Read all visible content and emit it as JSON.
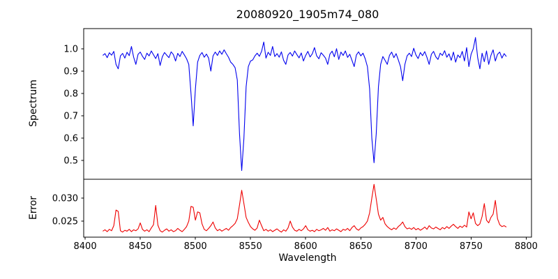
{
  "figure": {
    "background": "#ffffff",
    "text_color": "#000000"
  },
  "chart_data": {
    "type": "line",
    "title": "20080920_1905m74_080",
    "xlabel": "Wavelength",
    "grid": false,
    "legend": "none",
    "xlim": [
      8398.7,
      8804.8
    ],
    "x_ticks": [
      8400,
      8450,
      8500,
      8550,
      8600,
      8650,
      8700,
      8750,
      8800
    ],
    "x_tick_labels": [
      "8400",
      "8450",
      "8500",
      "8550",
      "8600",
      "8650",
      "8700",
      "8750",
      "8800"
    ],
    "x_start": 8416,
    "x_step": 2,
    "panels": [
      {
        "name": "spectrum",
        "ylabel": "Spectrum",
        "color": "#0000ee",
        "ylim": [
          0.416,
          1.09
        ],
        "y_ticks": [
          1.0,
          0.9,
          0.8,
          0.7,
          0.6,
          0.5
        ],
        "y_tick_labels": [
          "1.0",
          "0.9",
          "0.8",
          "0.7",
          "0.6",
          "0.5"
        ],
        "absorption_line_centers": [
          8498,
          8542,
          8662,
          8688
        ],
        "values": [
          0.97,
          0.978,
          0.96,
          0.982,
          0.971,
          0.988,
          0.93,
          0.91,
          0.968,
          0.979,
          0.958,
          0.984,
          0.969,
          1.01,
          0.962,
          0.93,
          0.975,
          0.985,
          0.966,
          0.952,
          0.98,
          0.968,
          0.99,
          0.973,
          0.956,
          0.978,
          0.925,
          0.964,
          0.983,
          0.971,
          0.96,
          0.986,
          0.974,
          0.945,
          0.979,
          0.965,
          0.988,
          0.972,
          0.955,
          0.93,
          0.8,
          0.655,
          0.82,
          0.94,
          0.97,
          0.983,
          0.962,
          0.976,
          0.958,
          0.9,
          0.968,
          0.985,
          0.97,
          0.99,
          0.975,
          0.995,
          0.978,
          0.962,
          0.94,
          0.93,
          0.915,
          0.86,
          0.62,
          0.455,
          0.6,
          0.83,
          0.92,
          0.945,
          0.95,
          0.968,
          0.98,
          0.966,
          0.988,
          1.03,
          0.958,
          0.984,
          0.97,
          1.01,
          0.965,
          0.978,
          0.962,
          0.986,
          0.948,
          0.93,
          0.972,
          0.983,
          0.967,
          0.99,
          0.974,
          0.959,
          0.981,
          0.945,
          0.97,
          0.988,
          0.963,
          0.977,
          1.005,
          0.968,
          0.955,
          0.982,
          0.971,
          0.958,
          0.93,
          0.976,
          0.989,
          0.964,
          1.0,
          0.952,
          0.985,
          0.97,
          0.99,
          0.961,
          0.975,
          0.948,
          0.92,
          0.972,
          0.986,
          0.968,
          0.98,
          0.955,
          0.92,
          0.82,
          0.6,
          0.49,
          0.62,
          0.83,
          0.93,
          0.965,
          0.948,
          0.93,
          0.97,
          0.985,
          0.96,
          0.978,
          0.95,
          0.92,
          0.857,
          0.93,
          0.968,
          0.98,
          0.965,
          1.002,
          0.972,
          0.956,
          0.983,
          0.969,
          0.987,
          0.961,
          0.93,
          0.975,
          0.988,
          0.964,
          0.952,
          0.98,
          0.97,
          0.991,
          0.962,
          0.977,
          0.948,
          0.985,
          0.94,
          0.972,
          0.96,
          0.988,
          0.945,
          1.005,
          0.92,
          0.975,
          1.0,
          1.05,
          0.96,
          0.91,
          0.98,
          0.942,
          0.99,
          0.93,
          0.97,
          0.995,
          0.945,
          0.975,
          0.985,
          0.958,
          0.978,
          0.965
        ]
      },
      {
        "name": "error",
        "ylabel": "Error",
        "color": "#ee0000",
        "ylim": [
          0.0215,
          0.0341
        ],
        "y_ticks": [
          0.03,
          0.025
        ],
        "y_tick_labels": [
          "0.030",
          "0.025"
        ],
        "values": [
          0.0228,
          0.0231,
          0.0227,
          0.0232,
          0.0229,
          0.024,
          0.0274,
          0.0271,
          0.0229,
          0.0226,
          0.023,
          0.0228,
          0.0232,
          0.0227,
          0.0231,
          0.0229,
          0.0233,
          0.0246,
          0.0232,
          0.0228,
          0.0231,
          0.0227,
          0.0235,
          0.0242,
          0.0284,
          0.0241,
          0.0229,
          0.0226,
          0.023,
          0.0233,
          0.0228,
          0.0231,
          0.0227,
          0.0229,
          0.0234,
          0.023,
          0.0227,
          0.0232,
          0.0238,
          0.025,
          0.0282,
          0.028,
          0.0252,
          0.027,
          0.0268,
          0.0244,
          0.0232,
          0.0229,
          0.0234,
          0.024,
          0.0248,
          0.0235,
          0.0229,
          0.0232,
          0.0228,
          0.0231,
          0.0234,
          0.023,
          0.0236,
          0.024,
          0.0245,
          0.0255,
          0.0285,
          0.0317,
          0.0288,
          0.0258,
          0.0247,
          0.0238,
          0.0233,
          0.023,
          0.0235,
          0.0252,
          0.024,
          0.0229,
          0.0232,
          0.0228,
          0.0231,
          0.0227,
          0.023,
          0.0233,
          0.0229,
          0.0226,
          0.0231,
          0.0228,
          0.0235,
          0.025,
          0.0237,
          0.023,
          0.0228,
          0.0232,
          0.0229,
          0.0233,
          0.024,
          0.0231,
          0.0228,
          0.023,
          0.0227,
          0.0232,
          0.0229,
          0.0231,
          0.0234,
          0.023,
          0.0236,
          0.0228,
          0.0231,
          0.0229,
          0.0233,
          0.023,
          0.0227,
          0.0232,
          0.023,
          0.0234,
          0.0229,
          0.0236,
          0.024,
          0.0233,
          0.023,
          0.0235,
          0.0238,
          0.0243,
          0.025,
          0.0268,
          0.03,
          0.033,
          0.0298,
          0.0265,
          0.0252,
          0.0258,
          0.0244,
          0.0238,
          0.0234,
          0.0231,
          0.0235,
          0.0232,
          0.0238,
          0.0242,
          0.0248,
          0.0238,
          0.0233,
          0.0235,
          0.0232,
          0.0236,
          0.0231,
          0.0234,
          0.023,
          0.0233,
          0.0237,
          0.0232,
          0.024,
          0.0235,
          0.0233,
          0.0237,
          0.0234,
          0.0231,
          0.0236,
          0.0233,
          0.0238,
          0.0234,
          0.0239,
          0.0243,
          0.0238,
          0.0234,
          0.0239,
          0.0236,
          0.0241,
          0.0237,
          0.027,
          0.0255,
          0.0268,
          0.0245,
          0.024,
          0.0244,
          0.026,
          0.0288,
          0.0252,
          0.0246,
          0.0258,
          0.0265,
          0.0295,
          0.0255,
          0.0242,
          0.0238,
          0.024,
          0.0237
        ]
      }
    ]
  }
}
